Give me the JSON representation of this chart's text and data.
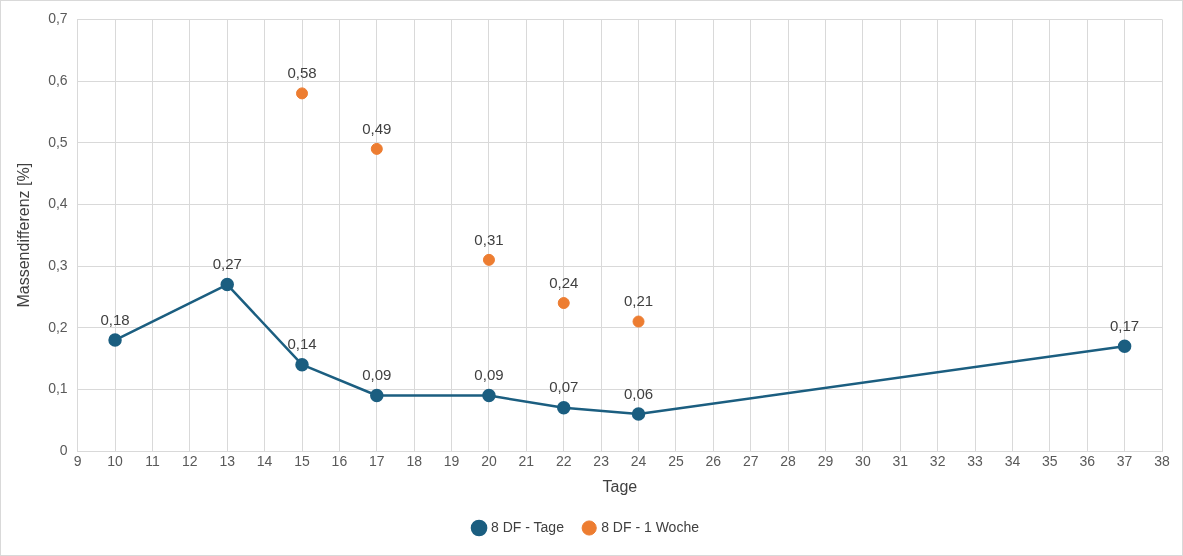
{
  "chart_data": {
    "type": "line",
    "xlabel": "Tage",
    "ylabel": "Massendifferenz [%]",
    "xlim": [
      9,
      38
    ],
    "xticks": [
      9,
      10,
      11,
      12,
      13,
      14,
      15,
      16,
      17,
      18,
      19,
      20,
      21,
      22,
      23,
      24,
      25,
      26,
      27,
      28,
      29,
      30,
      31,
      32,
      33,
      34,
      35,
      36,
      37,
      38
    ],
    "ylim": [
      0,
      0.7
    ],
    "yticks": [
      {
        "value": 0,
        "label": "0"
      },
      {
        "value": 0.1,
        "label": "0,1"
      },
      {
        "value": 0.2,
        "label": "0,2"
      },
      {
        "value": 0.3,
        "label": "0,3"
      },
      {
        "value": 0.4,
        "label": "0,4"
      },
      {
        "value": 0.5,
        "label": "0,5"
      },
      {
        "value": 0.6,
        "label": "0,6"
      },
      {
        "value": 0.7,
        "label": "0,7"
      }
    ],
    "grid": true,
    "legend": "bottom",
    "marker": "circle",
    "line_style": "solid",
    "series": [
      {
        "name": "8 DF - Tage",
        "color": "#1b5e80",
        "x": [
          10,
          13,
          15,
          17,
          20,
          22,
          24,
          37
        ],
        "values": [
          0.18,
          0.27,
          0.14,
          0.09,
          0.09,
          0.07,
          0.06,
          0.17
        ],
        "value_labels": [
          "0,18",
          "0,27",
          "0,14",
          "0,09",
          "0,09",
          "0,07",
          "0,06",
          "0,17"
        ]
      },
      {
        "name": "8 DF - 1 Woche",
        "type": "scatter",
        "color": "#ed7d31",
        "x": [
          15,
          17,
          20,
          22,
          24
        ],
        "values": [
          0.58,
          0.49,
          0.31,
          0.24,
          0.21
        ],
        "value_labels": [
          "0,58",
          "0,49",
          "0,31",
          "0,24",
          "0,21"
        ]
      }
    ]
  }
}
